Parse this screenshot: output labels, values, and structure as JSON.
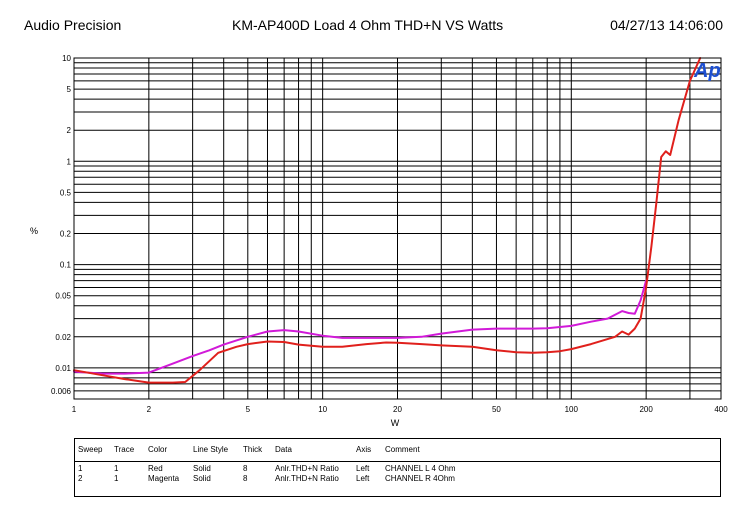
{
  "header": {
    "left": "Audio Precision",
    "center": "KM-AP400D Load 4 Ohm  THD+N  VS   Watts",
    "right": "04/27/13 14:06:00"
  },
  "logo_text": "Ap",
  "colors": {
    "red": "#e0201c",
    "magenta": "#d11ad8",
    "grid": "#000000",
    "logo": "#1d4fd0"
  },
  "chart_data": {
    "type": "line",
    "title": "KM-AP400D Load 4 Ohm  THD+N  VS   Watts",
    "xlabel": "W",
    "ylabel": "%",
    "xscale": "log",
    "yscale": "log",
    "xlim": [
      1,
      400
    ],
    "ylim": [
      0.005,
      10
    ],
    "x_ticks": [
      1,
      2,
      5,
      10,
      20,
      50,
      100,
      200,
      400
    ],
    "x_tick_labels": [
      "1",
      "2",
      "5",
      "10",
      "20",
      "50",
      "100",
      "200",
      "400"
    ],
    "y_ticks": [
      0.006,
      0.01,
      0.02,
      0.05,
      0.1,
      0.2,
      0.5,
      1,
      2,
      5,
      10
    ],
    "y_tick_labels": [
      "0.006",
      "0.01",
      "0.02",
      "0.05",
      "0.1",
      "0.2",
      "0.5",
      "1",
      "2",
      "5",
      "10"
    ],
    "series": [
      {
        "name": "CHANNEL  L  4 Ohm",
        "color": "#e0201c",
        "x": [
          1,
          1.3,
          1.6,
          2,
          2.5,
          2.8,
          3.2,
          3.8,
          4.5,
          5,
          6,
          7,
          8,
          10,
          12,
          15,
          18,
          20,
          25,
          30,
          40,
          50,
          60,
          70,
          80,
          90,
          100,
          120,
          140,
          150,
          160,
          170,
          180,
          190,
          200,
          210,
          220,
          230,
          240,
          250,
          270,
          300,
          330
        ],
        "y": [
          0.0095,
          0.0085,
          0.0078,
          0.0072,
          0.0072,
          0.0073,
          0.0095,
          0.014,
          0.016,
          0.017,
          0.018,
          0.0178,
          0.0168,
          0.016,
          0.016,
          0.017,
          0.0176,
          0.0175,
          0.017,
          0.0165,
          0.016,
          0.0148,
          0.0142,
          0.014,
          0.0142,
          0.0145,
          0.0152,
          0.017,
          0.019,
          0.02,
          0.0225,
          0.021,
          0.024,
          0.03,
          0.06,
          0.15,
          0.4,
          1.1,
          1.25,
          1.15,
          2.5,
          6,
          10
        ]
      },
      {
        "name": "CHANNEL  R  4Ohm",
        "color": "#d11ad8",
        "x": [
          1,
          1.3,
          1.6,
          2,
          2.5,
          3,
          3.5,
          4,
          5,
          6,
          7,
          8,
          10,
          12,
          15,
          20,
          25,
          30,
          40,
          50,
          60,
          70,
          80,
          100,
          120,
          140,
          160,
          170,
          180,
          190,
          200
        ],
        "y": [
          0.0092,
          0.0088,
          0.0088,
          0.009,
          0.011,
          0.013,
          0.0148,
          0.0168,
          0.02,
          0.0225,
          0.0232,
          0.0225,
          0.0205,
          0.0195,
          0.0195,
          0.0195,
          0.02,
          0.0215,
          0.0235,
          0.024,
          0.024,
          0.024,
          0.0242,
          0.0255,
          0.028,
          0.03,
          0.0355,
          0.034,
          0.0335,
          0.045,
          0.07
        ]
      }
    ],
    "legend": {
      "columns": [
        "Sweep",
        "Trace",
        "Color",
        "Line Style",
        "Thick",
        "Data",
        "Axis",
        "Comment"
      ],
      "rows": [
        [
          "1",
          "1",
          "Red",
          "Solid",
          "8",
          "Anlr.THD+N Ratio",
          "Left",
          "CHANNEL  L  4 Ohm"
        ],
        [
          "2",
          "1",
          "Magenta",
          "Solid",
          "8",
          "Anlr.THD+N Ratio",
          "Left",
          "CHANNEL  R  4Ohm"
        ]
      ]
    }
  }
}
